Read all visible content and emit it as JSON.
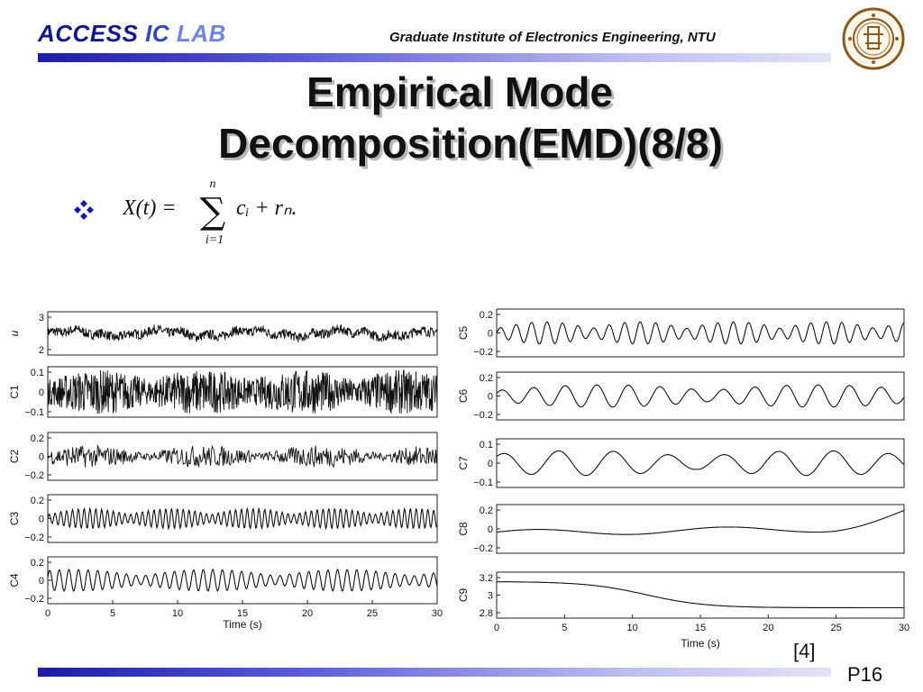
{
  "header": {
    "lab_part1": "ACCESS",
    "lab_part2": " IC",
    "lab_part3": " LAB",
    "institute": "Graduate Institute of Electronics Engineering, NTU"
  },
  "title": {
    "line1": "Empirical Mode",
    "line2": "Decomposition(EMD)(8/8)"
  },
  "formula": {
    "lhs": "X(t) =",
    "sum_top": "n",
    "sum_bottom": "i=1",
    "rhs": "cᵢ + rₙ."
  },
  "chart_data": [
    {
      "type": "line",
      "x_ticks": [
        "0",
        "5",
        "10",
        "15",
        "20",
        "25",
        "30"
      ],
      "xlabel": "Time (s)",
      "xlim": [
        0,
        30
      ],
      "panels": [
        {
          "label": "u",
          "yticks": [
            "3",
            "2"
          ],
          "ylim": [
            1.8,
            3.6
          ]
        },
        {
          "label": "C1",
          "yticks": [
            "0.1",
            "0",
            "−0.1"
          ],
          "ylim": [
            -0.1,
            0.1
          ]
        },
        {
          "label": "C2",
          "yticks": [
            "0.2",
            "0",
            "−0.2"
          ],
          "ylim": [
            -0.2,
            0.2
          ]
        },
        {
          "label": "C3",
          "yticks": [
            "0.2",
            "0",
            "−0.2"
          ],
          "ylim": [
            -0.4,
            0.4
          ]
        },
        {
          "label": "C4",
          "yticks": [
            "0.2",
            "0",
            "−0.2"
          ],
          "ylim": [
            -0.4,
            0.4
          ]
        }
      ]
    },
    {
      "type": "line",
      "x_ticks": [
        "0",
        "5",
        "10",
        "15",
        "20",
        "25",
        "30"
      ],
      "xlabel": "Time (s)",
      "xlim": [
        0,
        30
      ],
      "panels": [
        {
          "label": "C5",
          "yticks": [
            "0.2",
            "0",
            "−0.2"
          ],
          "ylim": [
            -0.3,
            0.3
          ]
        },
        {
          "label": "C6",
          "yticks": [
            "0.2",
            "0",
            "−0.2"
          ],
          "ylim": [
            -0.25,
            0.25
          ]
        },
        {
          "label": "C7",
          "yticks": [
            "0.1",
            "0",
            "−0.1"
          ],
          "ylim": [
            -0.15,
            0.15
          ]
        },
        {
          "label": "C8",
          "yticks": [
            "0.2",
            "0",
            "−0.2"
          ],
          "ylim": [
            -0.25,
            0.3
          ]
        },
        {
          "label": "C9",
          "yticks": [
            "3.2",
            "3",
            "2.8"
          ],
          "ylim": [
            2.75,
            3.3
          ]
        }
      ]
    }
  ],
  "reference": "[4]",
  "page_number": "P16",
  "colors": {
    "lab_dark": "#0d1a8c",
    "lab_mid": "#2e46c8",
    "lab_light": "#6f86e0",
    "bar_start": "#1b1ba8",
    "bar_end": "#e2e2f8",
    "seal": "#8a5a22"
  }
}
